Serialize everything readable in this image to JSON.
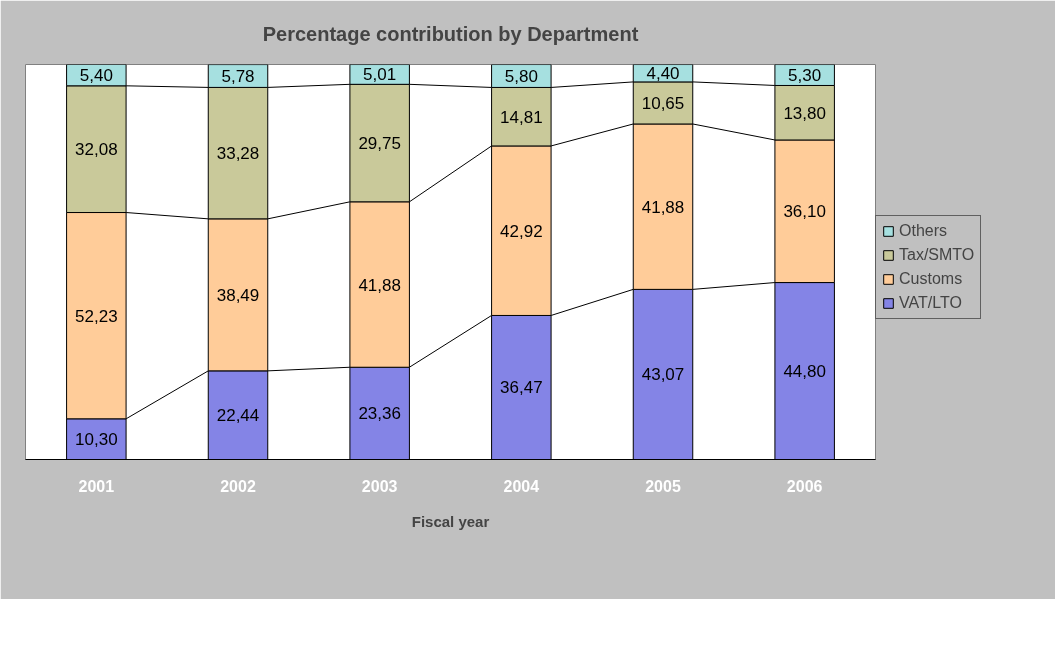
{
  "chart_data": {
    "type": "bar",
    "title": "Percentage contribution by Department",
    "xlabel": "Fiscal year",
    "stacked": true,
    "legend": "right",
    "grid": false,
    "tick_labels": "x",
    "categories": [
      "2001",
      "2002",
      "2003",
      "2004",
      "2005",
      "2006"
    ],
    "series": [
      {
        "name": "VAT/LTO",
        "color": "#8484e6",
        "values": [
          10.3,
          22.44,
          23.36,
          36.47,
          43.07,
          44.8
        ],
        "value_labels": [
          "10,30",
          "22,44",
          "23,36",
          "36,47",
          "43,07",
          "44,80"
        ]
      },
      {
        "name": "Customs",
        "color": "#ffcc99",
        "values": [
          52.23,
          38.49,
          41.88,
          42.92,
          41.88,
          36.1
        ],
        "value_labels": [
          "52,23",
          "38,49",
          "41,88",
          "42,92",
          "41,88",
          "36,10"
        ]
      },
      {
        "name": "Tax/SMTO",
        "color": "#c9c99a",
        "values": [
          32.08,
          33.28,
          29.75,
          14.81,
          10.65,
          13.8
        ],
        "value_labels": [
          "32,08",
          "33,28",
          "29,75",
          "14,81",
          "10,65",
          "13,80"
        ]
      },
      {
        "name": "Others",
        "color": "#a6e0e0",
        "values": [
          5.4,
          5.78,
          5.01,
          5.8,
          4.4,
          5.3
        ],
        "value_labels": [
          "5,40",
          "5,78",
          "5,01",
          "5,80",
          "4,40",
          "5,30"
        ]
      }
    ]
  }
}
